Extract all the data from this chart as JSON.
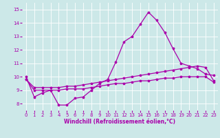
{
  "xlabel": "Windchill (Refroidissement éolien,°C)",
  "bg_color": "#cce8e8",
  "grid_color": "#ffffff",
  "line_color": "#aa00aa",
  "xlim": [
    -0.5,
    23.5
  ],
  "ylim": [
    7.5,
    15.5
  ],
  "yticks": [
    8,
    9,
    10,
    11,
    12,
    13,
    14,
    15
  ],
  "xticks": [
    0,
    1,
    2,
    3,
    4,
    5,
    6,
    7,
    8,
    9,
    10,
    11,
    12,
    13,
    14,
    15,
    16,
    17,
    18,
    19,
    20,
    21,
    22,
    23
  ],
  "line1_x": [
    0,
    1,
    2,
    3,
    4,
    5,
    6,
    7,
    8,
    9,
    10,
    11,
    12,
    13,
    14,
    15,
    16,
    17,
    18,
    19,
    20,
    21,
    22,
    23
  ],
  "line1_y": [
    10.0,
    8.5,
    8.8,
    9.0,
    7.9,
    7.9,
    8.4,
    8.5,
    9.0,
    9.5,
    9.8,
    11.1,
    12.6,
    13.0,
    13.9,
    14.8,
    14.2,
    13.3,
    12.1,
    11.0,
    10.8,
    10.6,
    10.2,
    10.1
  ],
  "line2_x": [
    0,
    1,
    2,
    3,
    4,
    5,
    6,
    7,
    8,
    9,
    10,
    11,
    12,
    13,
    14,
    15,
    16,
    17,
    18,
    19,
    20,
    21,
    22,
    23
  ],
  "line2_y": [
    9.8,
    9.2,
    9.2,
    9.2,
    9.2,
    9.3,
    9.3,
    9.4,
    9.5,
    9.6,
    9.7,
    9.8,
    9.9,
    10.0,
    10.1,
    10.2,
    10.3,
    10.4,
    10.5,
    10.6,
    10.7,
    10.8,
    10.7,
    9.7
  ],
  "line3_x": [
    0,
    1,
    2,
    3,
    4,
    5,
    6,
    7,
    8,
    9,
    10,
    11,
    12,
    13,
    14,
    15,
    16,
    17,
    18,
    19,
    20,
    21,
    22,
    23
  ],
  "line3_y": [
    9.8,
    9.0,
    9.0,
    9.0,
    9.0,
    9.1,
    9.1,
    9.1,
    9.2,
    9.3,
    9.4,
    9.5,
    9.5,
    9.6,
    9.7,
    9.7,
    9.8,
    9.9,
    9.9,
    10.0,
    10.0,
    10.0,
    10.0,
    9.6
  ],
  "xlabel_fontsize": 5.5,
  "tick_fontsize": 5.0,
  "marker_size": 2.5,
  "line_width": 0.9
}
